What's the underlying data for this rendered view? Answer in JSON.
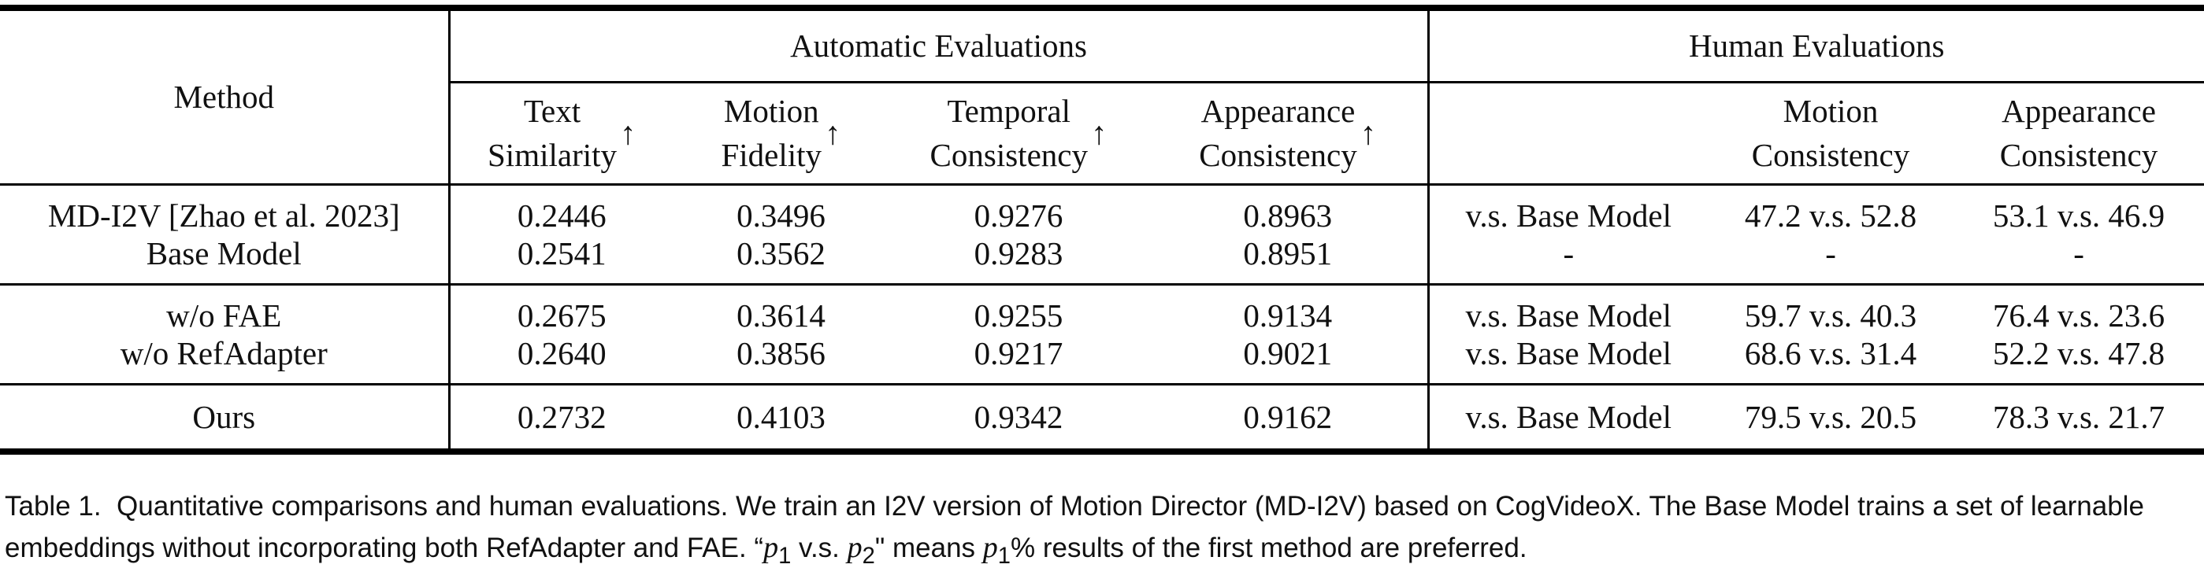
{
  "table": {
    "method_header": "Method",
    "group_auto": "Automatic Evaluations",
    "group_human": "Human Evaluations",
    "arrow": "↑",
    "metrics_auto": [
      {
        "line1": "Text",
        "line2": "Similarity"
      },
      {
        "line1": "Motion",
        "line2": "Fidelity"
      },
      {
        "line1": "Temporal",
        "line2": "Consistency"
      },
      {
        "line1": "Appearance",
        "line2": "Consistency"
      }
    ],
    "metrics_human": [
      {
        "line1": "Motion",
        "line2": "Consistency"
      },
      {
        "line1": "Appearance",
        "line2": "Consistency"
      }
    ],
    "rows": [
      {
        "method": "MD-I2V [Zhao et al. 2023]",
        "text_sim": "0.2446",
        "motion_fid": "0.3496",
        "temporal": "0.9276",
        "appearance": "0.8963",
        "vs": "v.s. Base Model",
        "h_motion": "47.2 v.s. 52.8",
        "h_appearance": "53.1 v.s. 46.9"
      },
      {
        "method": "Base Model",
        "text_sim": "0.2541",
        "motion_fid": "0.3562",
        "temporal": "0.9283",
        "appearance": "0.8951",
        "vs": "-",
        "h_motion": "-",
        "h_appearance": "-"
      },
      {
        "method": "w/o FAE",
        "text_sim": "0.2675",
        "motion_fid": "0.3614",
        "temporal": "0.9255",
        "appearance": "0.9134",
        "vs": "v.s. Base Model",
        "h_motion": "59.7 v.s. 40.3",
        "h_appearance": "76.4 v.s. 23.6"
      },
      {
        "method": "w/o RefAdapter",
        "text_sim": "0.2640",
        "motion_fid": "0.3856",
        "temporal": "0.9217",
        "appearance": "0.9021",
        "vs": "v.s. Base Model",
        "h_motion": "68.6 v.s. 31.4",
        "h_appearance": "52.2 v.s. 47.8"
      },
      {
        "method": "Ours",
        "text_sim": "0.2732",
        "motion_fid": "0.4103",
        "temporal": "0.9342",
        "appearance": "0.9162",
        "vs": "v.s. Base Model",
        "h_motion": "79.5 v.s. 20.5",
        "h_appearance": "78.3 v.s. 21.7"
      }
    ]
  },
  "caption": {
    "label": "Table 1.",
    "text1": "Quantitative comparisons and human evaluations. We train an I2V version of Motion Director (MD-I2V) based on CogVideoX. The Base Model trains a set of learnable embeddings without incorporating both RefAdapter and FAE. “",
    "p1": "p",
    "sub1": "1",
    "vs_text": " v.s. ",
    "p2": "p",
    "sub2": "2",
    "text2": "\" means ",
    "p3": "p",
    "sub3": "1",
    "text3": "% results of the first method are preferred."
  }
}
